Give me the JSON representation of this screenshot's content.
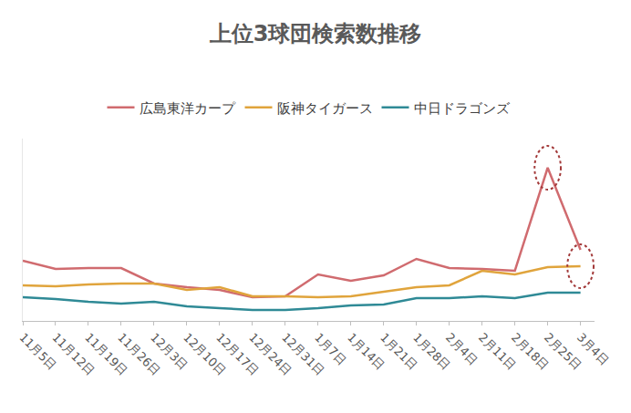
{
  "chart_data": {
    "type": "line",
    "title": "上位3球団検索数推移",
    "categories": [
      "11月5日",
      "11月12日",
      "11月19日",
      "11月26日",
      "12月3日",
      "12月10日",
      "12月17日",
      "12月24日",
      "12月31日",
      "1月7日",
      "1月14日",
      "1月21日",
      "1月28日",
      "2月4日",
      "2月11日",
      "2月18日",
      "2月25日",
      "3月4日"
    ],
    "series": [
      {
        "name": "広島東洋カープ",
        "color": "#d06b6f",
        "values": [
          33,
          28.5,
          29,
          29,
          20.5,
          18.5,
          17,
          13,
          13.5,
          25.5,
          22,
          25,
          34,
          29,
          28.5,
          27.5,
          84,
          39
        ]
      },
      {
        "name": "阪神タイガース",
        "color": "#e0a43c",
        "values": [
          19.5,
          19,
          20,
          20.5,
          20.5,
          17,
          18.5,
          13.5,
          13.5,
          13,
          13.5,
          16,
          18.5,
          19.5,
          27.5,
          25.5,
          29.5,
          30
        ]
      },
      {
        "name": "中日ドラゴンズ",
        "color": "#2f8a96",
        "values": [
          13,
          12,
          10.5,
          9.5,
          10.5,
          8,
          7,
          6,
          6,
          7,
          8.5,
          9,
          12.5,
          12.5,
          13.5,
          12.5,
          15.5,
          15.5
        ]
      }
    ],
    "ylim": [
      0,
      100
    ],
    "grid": false,
    "legend": "top",
    "tick_labels": "x"
  }
}
